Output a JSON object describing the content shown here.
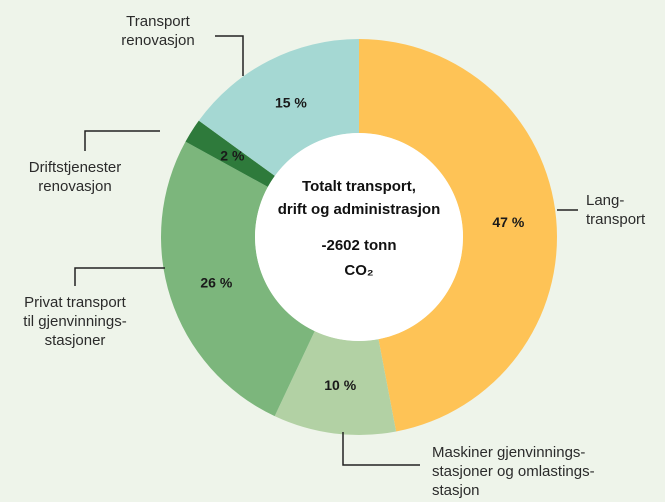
{
  "chart_data": {
    "type": "donut",
    "categories": [
      "Lang-\ntransport",
      "Maskiner gjenvinnings-\nstasjoner og omlastings-\nstasjon",
      "Privat transport\ntil gjenvinnings-\nstasjoner",
      "Driftstjenester\nrenovasjon",
      "Transport\nrenovasjon"
    ],
    "values": [
      47,
      10,
      26,
      2,
      15
    ],
    "value_labels": [
      "47 %",
      "10 %",
      "26 %",
      "2 %",
      "15 %"
    ],
    "colors": [
      "#fec356",
      "#b2d1a4",
      "#7cb67c",
      "#2e7a3b",
      "#a5d8d3"
    ],
    "center_title": "Totalt transport,\ndrift og administrasjon",
    "center_value": "-2602 tonn\nCO₂"
  }
}
